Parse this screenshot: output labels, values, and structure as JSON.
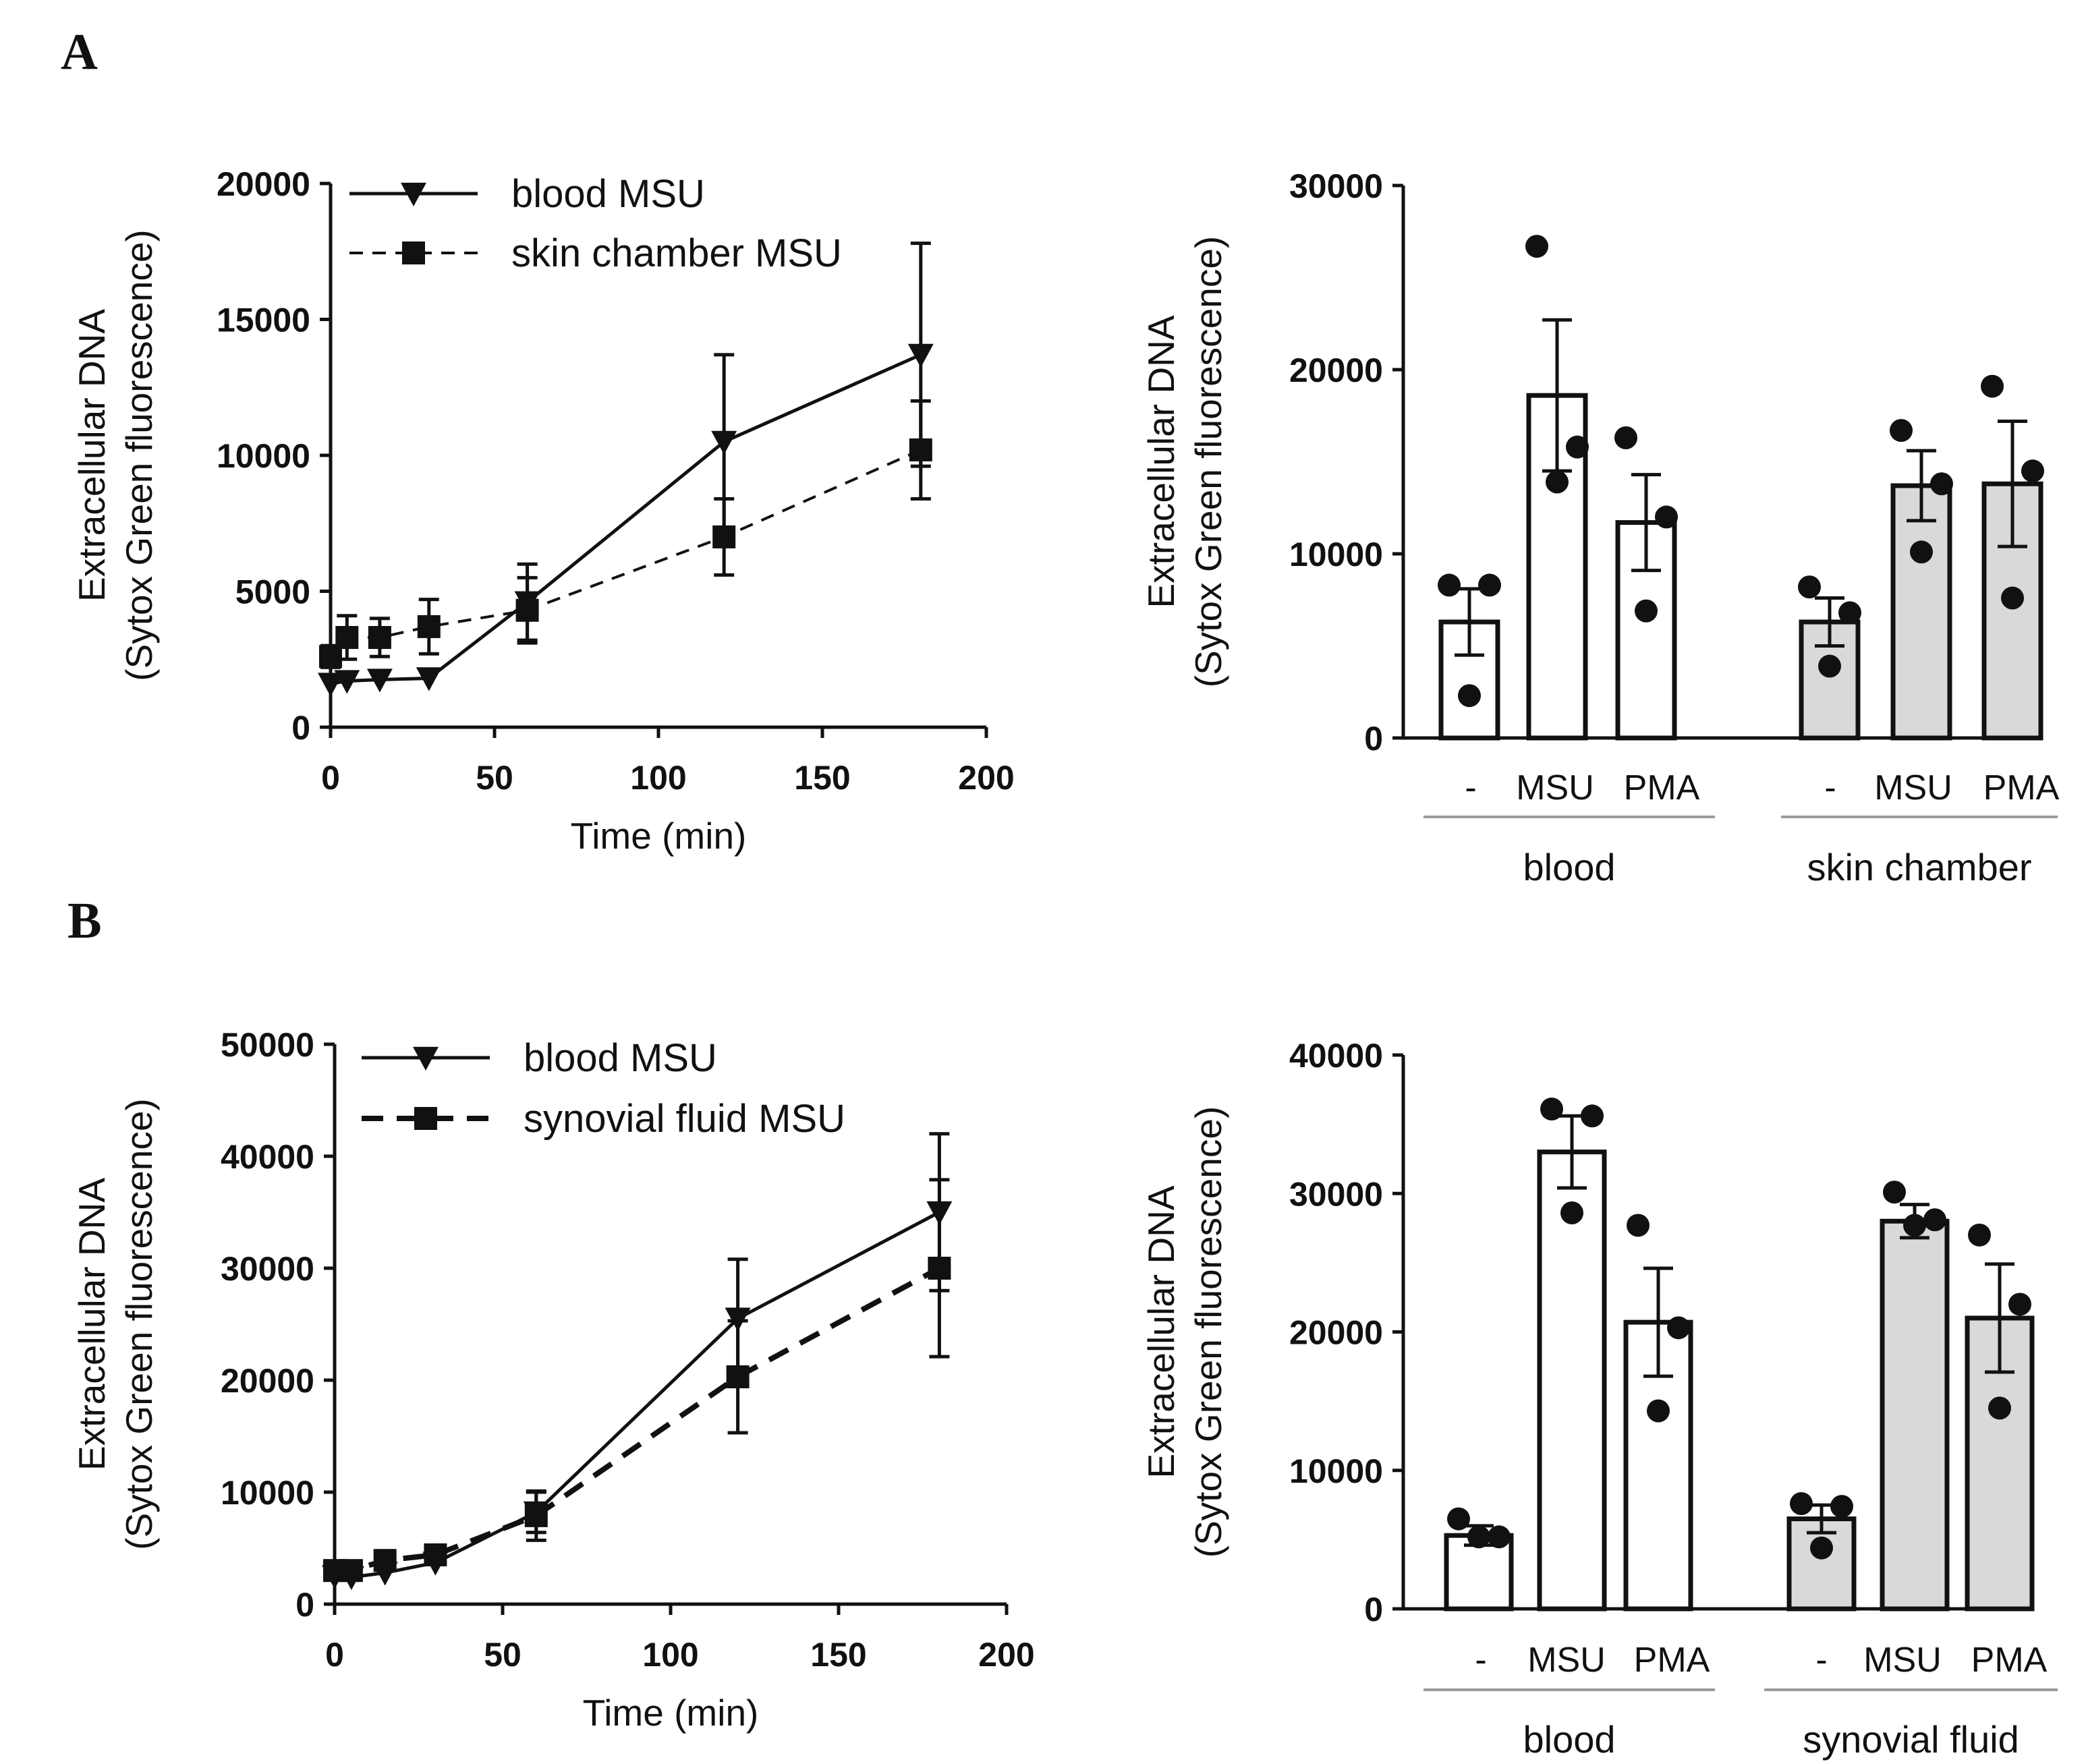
{
  "panels": {
    "a": "A",
    "b": "B"
  },
  "chart_data": [
    {
      "type": "line",
      "ylabel": [
        "Extracellular DNA",
        "(Sytox Green fluorescence)"
      ],
      "xlabel": "Time (min)",
      "xlim": [
        0,
        200
      ],
      "xticks": [
        0,
        50,
        100,
        150,
        200
      ],
      "ylim": [
        0,
        20000
      ],
      "yticks": [
        0,
        5000,
        10000,
        15000,
        20000
      ],
      "series": [
        {
          "name": "blood MSU",
          "marker": "triangle-down",
          "dash": "solid",
          "x": [
            0,
            5,
            15,
            30,
            60,
            120,
            180
          ],
          "y": [
            1600,
            1700,
            1750,
            1800,
            4600,
            10500,
            13700
          ],
          "err": [
            0,
            0,
            0,
            0,
            1400,
            3200,
            4100
          ]
        },
        {
          "name": "skin chamber MSU",
          "marker": "square",
          "dash": "dashed",
          "x": [
            0,
            5,
            15,
            30,
            60,
            120,
            180
          ],
          "y": [
            2600,
            3300,
            3300,
            3700,
            4300,
            7000,
            10200
          ],
          "err": [
            400,
            800,
            700,
            1000,
            1200,
            1400,
            1800
          ]
        }
      ]
    },
    {
      "type": "bar",
      "ylabel": [
        "Extracellular DNA",
        "(Sytox Green fluorescence)"
      ],
      "ylim": [
        0,
        30000
      ],
      "yticks": [
        0,
        10000,
        20000,
        30000
      ],
      "categories": [
        "-",
        "MSU",
        "PMA",
        "-",
        "MSU",
        "PMA"
      ],
      "groups": [
        "blood",
        "skin chamber"
      ],
      "values": [
        6300,
        18600,
        11700,
        6300,
        13700,
        13800
      ],
      "errors": [
        1800,
        4100,
        2600,
        1300,
        1900,
        3400
      ],
      "points": [
        [
          8300,
          8300,
          2300
        ],
        [
          26700,
          15800,
          13900
        ],
        [
          16300,
          12000,
          6900
        ],
        [
          8200,
          6800,
          3900
        ],
        [
          16700,
          13800,
          10100
        ],
        [
          19100,
          14500,
          7600
        ]
      ]
    },
    {
      "type": "line",
      "ylabel": [
        "Extracellular DNA",
        "(Sytox Green fluorescence)"
      ],
      "xlabel": "Time (min)",
      "xlim": [
        0,
        200
      ],
      "xticks": [
        0,
        50,
        100,
        150,
        200
      ],
      "ylim": [
        0,
        50000
      ],
      "yticks": [
        0,
        10000,
        20000,
        30000,
        40000,
        50000
      ],
      "series": [
        {
          "name": "blood MSU",
          "marker": "triangle-down",
          "dash": "solid",
          "x": [
            0,
            5,
            15,
            30,
            60,
            120,
            180
          ],
          "y": [
            2500,
            2400,
            2800,
            3700,
            8200,
            25500,
            35000
          ],
          "err": [
            0,
            0,
            0,
            0,
            1800,
            5300,
            7000
          ]
        },
        {
          "name": "synovial fluid MSU",
          "marker": "square",
          "dash": "dashed",
          "x": [
            0,
            5,
            15,
            30,
            60,
            120,
            180
          ],
          "y": [
            3000,
            3000,
            3900,
            4400,
            7900,
            20300,
            30000
          ],
          "err": [
            0,
            0,
            0,
            0,
            2200,
            5000,
            7900
          ]
        }
      ]
    },
    {
      "type": "bar",
      "ylabel": [
        "Extracellular DNA",
        "(Sytox Green fluorescence)"
      ],
      "ylim": [
        0,
        40000
      ],
      "yticks": [
        0,
        10000,
        20000,
        30000,
        40000
      ],
      "categories": [
        "-",
        "MSU",
        "PMA",
        "-",
        "MSU",
        "PMA"
      ],
      "groups": [
        "blood",
        "synovial fluid"
      ],
      "values": [
        5300,
        33000,
        20700,
        6500,
        28000,
        21000
      ],
      "errors": [
        700,
        2600,
        3900,
        1000,
        1200,
        3900
      ],
      "points": [
        [
          6500,
          5200,
          5200
        ],
        [
          36100,
          35600,
          28600
        ],
        [
          27700,
          20300,
          14300
        ],
        [
          7600,
          7400,
          4400
        ],
        [
          30100,
          28100,
          27700
        ],
        [
          27000,
          22000,
          14500
        ]
      ]
    }
  ]
}
